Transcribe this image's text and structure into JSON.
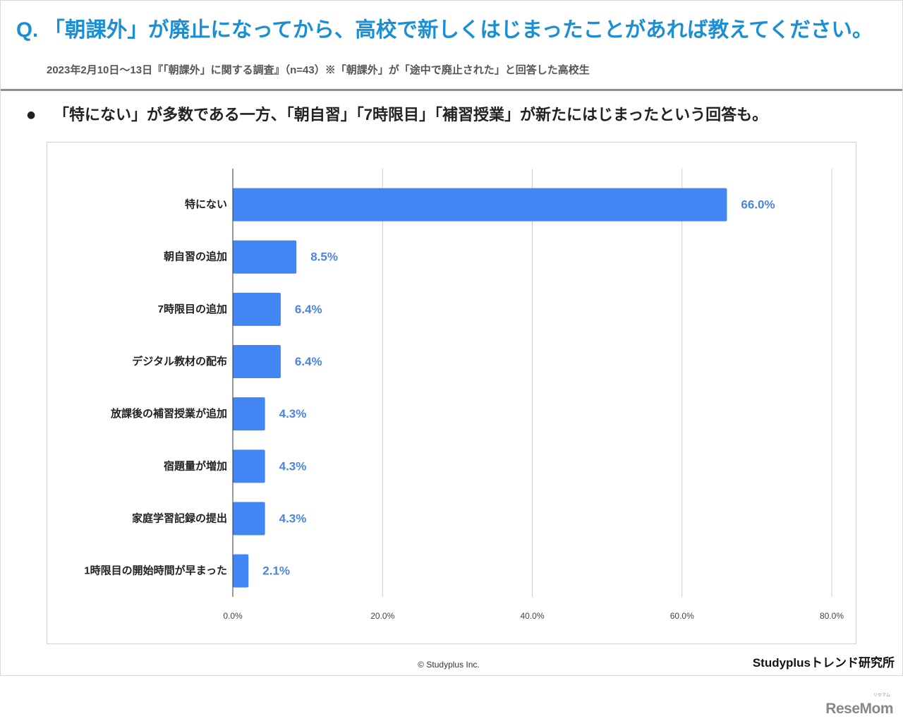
{
  "theme": {
    "accent": "#1b8fd4"
  },
  "header": {
    "question": "Q. 「朝課外」が廃止になってから、高校で新しくはじまったことがあれば教えてください。",
    "survey_note": "2023年2月10日～13日『「朝課外」に関する調査』（n=43）※「朝課外」が「途中で廃止された」と回答した高校生"
  },
  "summary": {
    "marker": "●",
    "text": "「特にない」が多数である一方、「朝自習」「7時限目」「補習授業」が新たにはじまったという回答も。"
  },
  "chart_data": {
    "type": "bar",
    "orientation": "horizontal",
    "categories": [
      "特にない",
      "朝自習の追加",
      "7時限目の追加",
      "デジタル教材の配布",
      "放課後の補習授業が追加",
      "宿題量が増加",
      "家庭学習記録の提出",
      "1時限目の開始時間が早まった"
    ],
    "values": [
      66.0,
      8.5,
      6.4,
      6.4,
      4.3,
      4.3,
      4.3,
      2.1
    ],
    "value_labels": [
      "66.0%",
      "8.5%",
      "6.4%",
      "6.4%",
      "4.3%",
      "4.3%",
      "4.3%",
      "2.1%"
    ],
    "unit": "%",
    "xlim": [
      0,
      80
    ],
    "x_ticks": [
      0,
      20,
      40,
      60,
      80
    ],
    "x_tick_labels": [
      "0.0%",
      "20.0%",
      "40.0%",
      "60.0%",
      "80.0%"
    ],
    "grid": true,
    "legend": "none",
    "bar_color": "#4285f4",
    "value_label_color": "#4a85dd"
  },
  "footer": {
    "copyright": "© Studyplus Inc.",
    "brand": "Studyplusトレンド研究所"
  },
  "watermark": {
    "kana": "リセマム",
    "logo": "ReseMom"
  }
}
